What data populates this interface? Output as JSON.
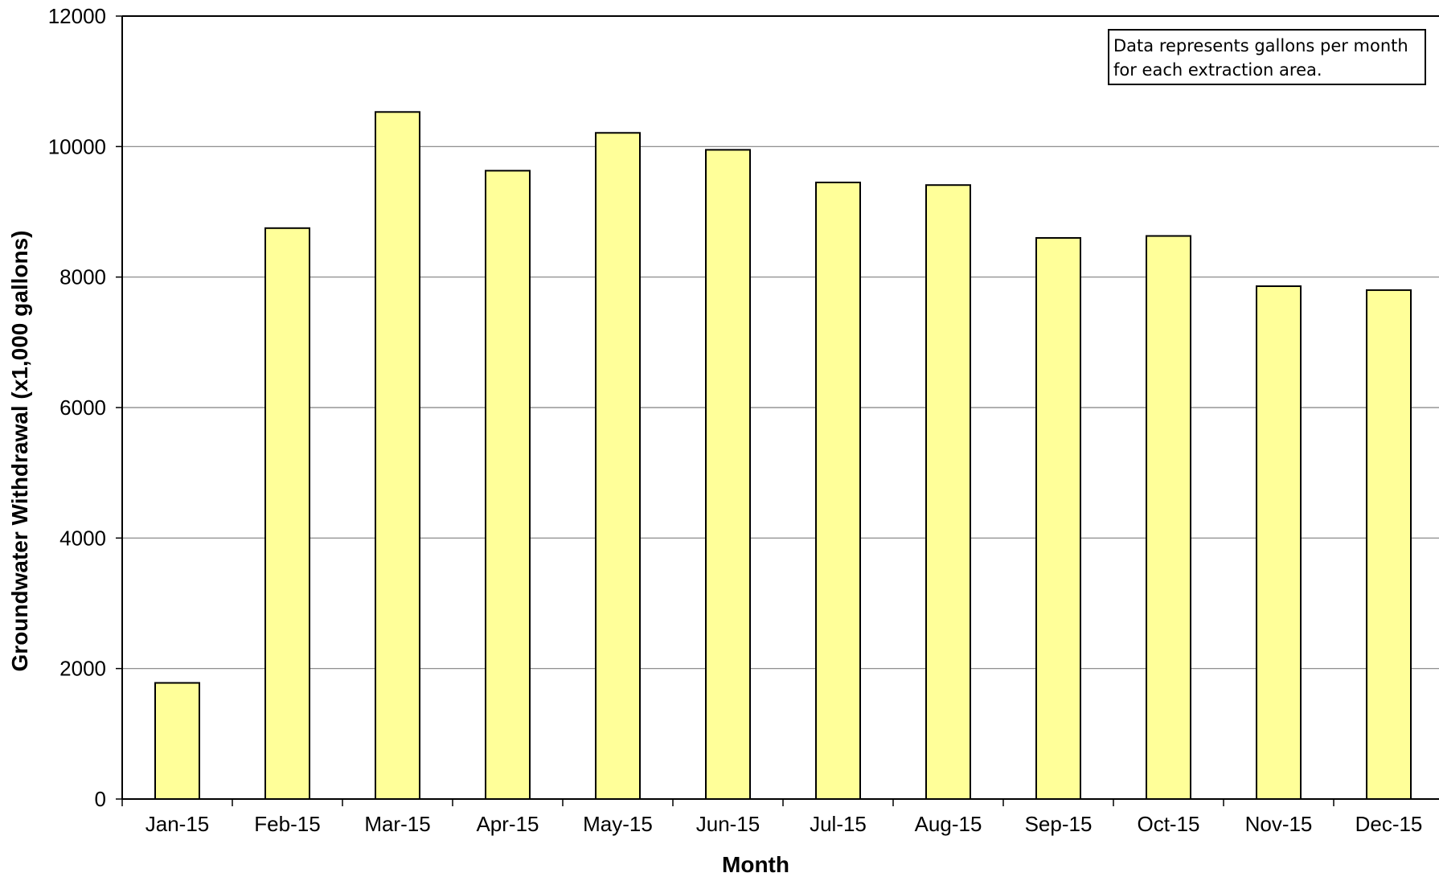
{
  "colors": {
    "bar_fill": "#FFFF99",
    "bar_stroke": "#000000",
    "gridline": "#808080",
    "axis": "#000000"
  },
  "chart_data": {
    "type": "bar",
    "title": "",
    "xlabel": "Month",
    "ylabel": "Groundwater Withdrawal (x1,000 gallons)",
    "ylim": [
      0,
      12000
    ],
    "yticks": [
      0,
      2000,
      4000,
      6000,
      8000,
      10000,
      12000
    ],
    "grid": true,
    "categories": [
      "Jan-15",
      "Feb-15",
      "Mar-15",
      "Apr-15",
      "May-15",
      "Jun-15",
      "Jul-15",
      "Aug-15",
      "Sep-15",
      "Oct-15",
      "Nov-15",
      "Dec-15"
    ],
    "values": [
      1780,
      8750,
      10530,
      9630,
      10210,
      9950,
      9450,
      9410,
      8600,
      8630,
      7860,
      7800
    ],
    "annotation": [
      "Data represents gallons per month",
      "for each extraction area."
    ]
  }
}
